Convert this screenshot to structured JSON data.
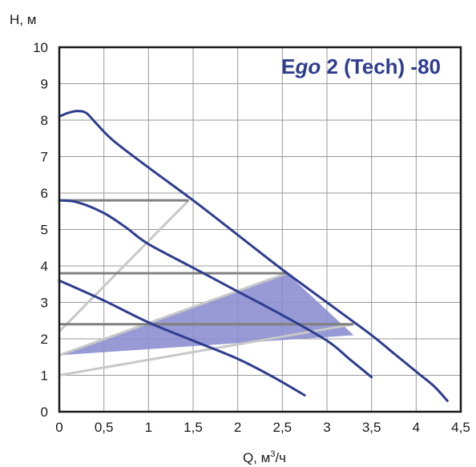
{
  "chart_data": {
    "type": "line",
    "title_parts": [
      "E",
      "go",
      " 2 (Tech) -80"
    ],
    "xlabel": "Q, м",
    "xlabel_sup": "3",
    "xlabel_suffix": "/ч",
    "ylabel": "H, м",
    "xlim": [
      0,
      4.5
    ],
    "ylim": [
      0,
      10
    ],
    "xticks": [
      0,
      0.5,
      1,
      1.5,
      2,
      2.5,
      3,
      3.5,
      4,
      4.5
    ],
    "xtick_labels": [
      "0",
      "0,5",
      "1",
      "1,5",
      "2",
      "2,5",
      "3",
      "3,5",
      "4",
      "4,5"
    ],
    "yticks": [
      0,
      1,
      2,
      3,
      4,
      5,
      6,
      7,
      8,
      9,
      10
    ],
    "ytick_labels": [
      "0",
      "1",
      "2",
      "3",
      "4",
      "5",
      "6",
      "7",
      "8",
      "9",
      "10"
    ],
    "grid": true,
    "colors": {
      "curve": "#2e3d8f",
      "grid": "#999999",
      "frame": "#1a1a1a",
      "const_pressure": "#808080",
      "prop_pressure": "#c8c8c8",
      "area_fill": "#8c8fd0",
      "title": "#2e3d8f"
    },
    "series": [
      {
        "values": [
          [
            0,
            8.1
          ],
          [
            0.1,
            8.2
          ],
          [
            0.2,
            8.25
          ],
          [
            0.3,
            8.2
          ],
          [
            0.4,
            7.95
          ],
          [
            0.6,
            7.45
          ],
          [
            1.0,
            6.7
          ],
          [
            1.5,
            5.8
          ],
          [
            2.0,
            4.85
          ],
          [
            2.5,
            3.9
          ],
          [
            3.0,
            3.0
          ],
          [
            3.5,
            2.1
          ],
          [
            3.75,
            1.6
          ],
          [
            4.0,
            1.1
          ],
          [
            4.2,
            0.7
          ],
          [
            4.35,
            0.3
          ]
        ]
      },
      {
        "values": [
          [
            0,
            5.8
          ],
          [
            0.2,
            5.75
          ],
          [
            0.5,
            5.45
          ],
          [
            0.75,
            5.05
          ],
          [
            1.0,
            4.6
          ],
          [
            1.5,
            3.95
          ],
          [
            2.0,
            3.3
          ],
          [
            2.5,
            2.65
          ],
          [
            3.0,
            1.95
          ],
          [
            3.25,
            1.45
          ],
          [
            3.5,
            0.95
          ]
        ]
      },
      {
        "values": [
          [
            0,
            3.6
          ],
          [
            0.5,
            3.05
          ],
          [
            1.0,
            2.45
          ],
          [
            1.5,
            1.95
          ],
          [
            2.0,
            1.45
          ],
          [
            2.4,
            0.95
          ],
          [
            2.75,
            0.45
          ]
        ]
      }
    ],
    "constant_pressure_lines": [
      {
        "y": 5.8,
        "x_end": 1.45
      },
      {
        "y": 3.8,
        "x_end": 2.55
      },
      {
        "y": 2.4,
        "x_end": 3.3
      }
    ],
    "proportional_pressure_lines": [
      {
        "from": [
          0,
          2.2
        ],
        "to": [
          1.45,
          5.8
        ]
      },
      {
        "from": [
          0,
          1.55
        ],
        "to": [
          2.55,
          3.8
        ]
      },
      {
        "from": [
          0,
          1.0
        ],
        "to": [
          3.3,
          2.4
        ]
      }
    ],
    "operating_area": [
      [
        0,
        1.55
      ],
      [
        2.55,
        3.8
      ],
      [
        3.3,
        2.1
      ],
      [
        0,
        1.55
      ]
    ]
  }
}
